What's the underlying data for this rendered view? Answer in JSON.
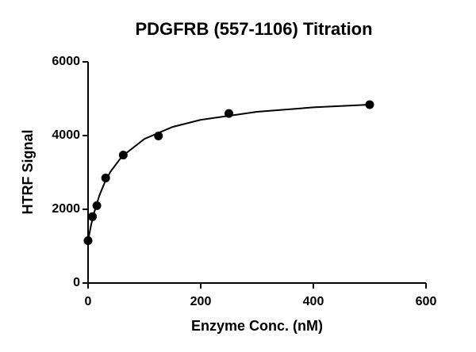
{
  "chart_data": {
    "type": "scatter",
    "title": "PDGFRB (557-1106) Titration",
    "x_label": "Enzyme Conc. (nM)",
    "y_label": "HTRF Signal",
    "xlim": [
      0,
      600
    ],
    "xticks": [
      0,
      200,
      400,
      600
    ],
    "ylim": [
      0,
      6000
    ],
    "yticks": [
      0,
      2000,
      4000,
      6000
    ],
    "series": [
      {
        "mode": "markers",
        "color": "#000000",
        "x": [
          0,
          7.8,
          15.6,
          31.25,
          62.5,
          125,
          250,
          500
        ],
        "values": [
          1150,
          1800,
          2100,
          2850,
          3470,
          3990,
          4600,
          4840
        ]
      },
      {
        "mode": "line",
        "color": "#000000",
        "x": [
          0,
          5,
          10,
          20,
          30,
          40,
          60,
          100,
          150,
          200,
          300,
          400,
          500
        ],
        "values": [
          1150,
          1545,
          1870,
          2371,
          2741,
          3024,
          3431,
          3910,
          4234,
          4427,
          4644,
          4765,
          4840
        ]
      }
    ]
  }
}
